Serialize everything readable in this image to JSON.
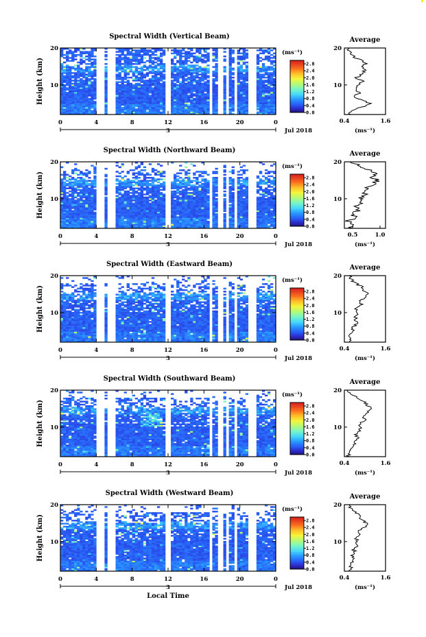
{
  "figure": {
    "xlabel": "Local Time",
    "date_label": "Jul 2018",
    "day_label": "3",
    "units_label": "(ms⁻¹)",
    "avg_title": "Average",
    "avg_xlabel": "(ms⁻¹)",
    "ylabel": "Height (km)"
  },
  "chart_data": [
    {
      "type": "heatmap",
      "title": "Spectral Width (Vertical Beam)",
      "x_ticks": [
        "0",
        "4",
        "8",
        "12",
        "16",
        "20",
        "0"
      ],
      "y_ticks": [
        "10",
        "20"
      ],
      "xlim": [
        0,
        24
      ],
      "ylim": [
        2,
        20
      ],
      "colorbar": {
        "ticks": [
          "2.8",
          "2.4",
          "2.0",
          "1.6",
          "1.2",
          "0.8",
          "0.4",
          "0.0"
        ],
        "range": [
          0,
          3.0
        ]
      },
      "average": {
        "type": "line",
        "title": "Average",
        "x_ticks": [
          "0.4",
          "1.6"
        ],
        "xlim": [
          0.4,
          1.6
        ],
        "y_ticks": [
          "10",
          "20"
        ],
        "profile": [
          [
            2,
            0.55
          ],
          [
            3,
            0.62
          ],
          [
            4,
            0.9
          ],
          [
            5,
            1.15
          ],
          [
            6,
            0.85
          ],
          [
            7,
            0.7
          ],
          [
            8,
            0.85
          ],
          [
            9,
            0.7
          ],
          [
            10,
            0.8
          ],
          [
            11,
            0.95
          ],
          [
            12,
            0.75
          ],
          [
            13,
            0.95
          ],
          [
            14,
            1.0
          ],
          [
            15,
            0.9
          ],
          [
            16,
            1.05
          ],
          [
            17,
            0.8
          ],
          [
            18,
            0.62
          ],
          [
            19,
            0.55
          ],
          [
            20,
            0.5
          ]
        ]
      }
    },
    {
      "type": "heatmap",
      "title": "Spectral Width (Northward Beam)",
      "x_ticks": [
        "0",
        "4",
        "8",
        "12",
        "16",
        "20",
        "0"
      ],
      "y_ticks": [
        "10",
        "20"
      ],
      "xlim": [
        0,
        24
      ],
      "ylim": [
        2,
        20
      ],
      "colorbar": {
        "ticks": [
          "2.8",
          "2.4",
          "2.0",
          "1.6",
          "1.2",
          "0.8",
          "0.4",
          "0.0"
        ],
        "range": [
          0,
          3.0
        ]
      },
      "average": {
        "type": "line",
        "title": "Average",
        "x_ticks": [
          "0.5",
          "1.0"
        ],
        "xlim": [
          0.35,
          1.1
        ],
        "y_ticks": [
          "10",
          "20"
        ],
        "profile": [
          [
            2,
            0.45
          ],
          [
            3,
            0.5
          ],
          [
            4,
            0.42
          ],
          [
            5,
            0.55
          ],
          [
            6,
            0.5
          ],
          [
            7,
            0.62
          ],
          [
            8,
            0.58
          ],
          [
            9,
            0.68
          ],
          [
            10,
            0.64
          ],
          [
            11,
            0.75
          ],
          [
            12,
            0.7
          ],
          [
            13,
            0.78
          ],
          [
            14,
            0.88
          ],
          [
            15,
            0.95
          ],
          [
            16,
            0.85
          ],
          [
            17,
            0.9
          ],
          [
            18,
            0.78
          ],
          [
            19,
            0.6
          ],
          [
            20,
            0.5
          ]
        ]
      }
    },
    {
      "type": "heatmap",
      "title": "Spectral Width (Eastward Beam)",
      "x_ticks": [
        "0",
        "4",
        "8",
        "12",
        "16",
        "20",
        "0"
      ],
      "y_ticks": [
        "10",
        "20"
      ],
      "xlim": [
        0,
        24
      ],
      "ylim": [
        2,
        20
      ],
      "colorbar": {
        "ticks": [
          "2.8",
          "2.4",
          "2.0",
          "1.6",
          "1.2",
          "0.8",
          "0.4",
          "0.0"
        ],
        "range": [
          0,
          3.0
        ]
      },
      "average": {
        "type": "line",
        "title": "Average",
        "x_ticks": [
          "0.4",
          "1.6"
        ],
        "xlim": [
          0.4,
          1.6
        ],
        "y_ticks": [
          "10",
          "20"
        ],
        "profile": [
          [
            2,
            0.5
          ],
          [
            3,
            0.58
          ],
          [
            4,
            0.55
          ],
          [
            5,
            0.7
          ],
          [
            6,
            0.62
          ],
          [
            7,
            0.78
          ],
          [
            8,
            0.7
          ],
          [
            9,
            0.75
          ],
          [
            10,
            0.82
          ],
          [
            11,
            0.75
          ],
          [
            12,
            0.9
          ],
          [
            13,
            0.85
          ],
          [
            14,
            1.0
          ],
          [
            15,
            1.1
          ],
          [
            16,
            0.95
          ],
          [
            17,
            0.9
          ],
          [
            18,
            0.72
          ],
          [
            19,
            0.6
          ],
          [
            20,
            0.55
          ]
        ]
      }
    },
    {
      "type": "heatmap",
      "title": "Spectral Width (Southward Beam)",
      "x_ticks": [
        "0",
        "4",
        "8",
        "12",
        "16",
        "20",
        "0"
      ],
      "y_ticks": [
        "10",
        "20"
      ],
      "xlim": [
        0,
        24
      ],
      "ylim": [
        2,
        20
      ],
      "colorbar": {
        "ticks": [
          "2.8",
          "2.4",
          "2.0",
          "1.6",
          "1.2",
          "0.8",
          "0.4",
          "0.0"
        ],
        "range": [
          0,
          3.0
        ]
      },
      "average": {
        "type": "line",
        "title": "Average",
        "x_ticks": [
          "0.4",
          "1.6"
        ],
        "xlim": [
          0.4,
          1.6
        ],
        "y_ticks": [
          "10",
          "20"
        ],
        "profile": [
          [
            2,
            0.5
          ],
          [
            3,
            0.55
          ],
          [
            4,
            0.62
          ],
          [
            5,
            0.7
          ],
          [
            6,
            0.68
          ],
          [
            7,
            0.8
          ],
          [
            8,
            0.75
          ],
          [
            9,
            0.85
          ],
          [
            10,
            0.9
          ],
          [
            11,
            0.85
          ],
          [
            12,
            1.0
          ],
          [
            13,
            0.95
          ],
          [
            14,
            1.1
          ],
          [
            15,
            1.2
          ],
          [
            16,
            1.05
          ],
          [
            17,
            0.95
          ],
          [
            18,
            0.8
          ],
          [
            19,
            0.6
          ],
          [
            20,
            0.5
          ]
        ]
      }
    },
    {
      "type": "heatmap",
      "title": "Spectral Width (Westward Beam)",
      "x_ticks": [
        "0",
        "4",
        "8",
        "12",
        "16",
        "20",
        "0"
      ],
      "y_ticks": [
        "10",
        "20"
      ],
      "xlim": [
        0,
        24
      ],
      "ylim": [
        2,
        20
      ],
      "colorbar": {
        "ticks": [
          "2.8",
          "2.4",
          "2.0",
          "1.6",
          "1.2",
          "0.8",
          "0.4",
          "0.0"
        ],
        "range": [
          0,
          3.0
        ]
      },
      "average": {
        "type": "line",
        "title": "Average",
        "x_ticks": [
          "0.4",
          "1.6"
        ],
        "xlim": [
          0.4,
          1.6
        ],
        "y_ticks": [
          "10",
          "20"
        ],
        "profile": [
          [
            2,
            0.5
          ],
          [
            3,
            0.6
          ],
          [
            4,
            0.55
          ],
          [
            5,
            0.68
          ],
          [
            6,
            0.62
          ],
          [
            7,
            0.72
          ],
          [
            8,
            0.65
          ],
          [
            9,
            0.8
          ],
          [
            10,
            0.78
          ],
          [
            11,
            0.72
          ],
          [
            12,
            0.88
          ],
          [
            13,
            0.82
          ],
          [
            14,
            1.0
          ],
          [
            15,
            1.05
          ],
          [
            16,
            0.9
          ],
          [
            17,
            0.85
          ],
          [
            18,
            0.7
          ],
          [
            19,
            0.58
          ],
          [
            20,
            0.5
          ]
        ]
      }
    }
  ],
  "gaps": [
    [
      4.0,
      4.8
    ],
    [
      5.2,
      6.0
    ],
    [
      11.8,
      12.3
    ],
    [
      16.5,
      16.9
    ],
    [
      17.4,
      18.0
    ],
    [
      18.6,
      18.8
    ],
    [
      19.3,
      19.6
    ],
    [
      21.0,
      21.8
    ]
  ]
}
